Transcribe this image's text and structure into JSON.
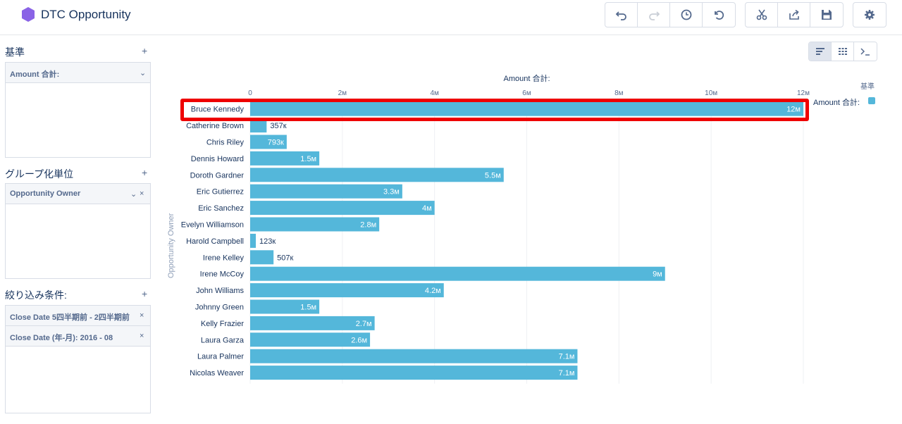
{
  "header": {
    "title": "DTC Opportunity",
    "brand_color": "#8a63e6"
  },
  "left_panel": {
    "measures": {
      "label": "基準",
      "add": "+",
      "pills": [
        {
          "label": "Amount 合計:",
          "icon": "chevron-down-icon"
        }
      ]
    },
    "groupings": {
      "label": "グループ化単位",
      "add": "+",
      "pills": [
        {
          "label": "Opportunity Owner",
          "icons": [
            "chevron-down-icon",
            "close-icon"
          ]
        }
      ]
    },
    "filters": {
      "label": "絞り込み条件:",
      "add": "+",
      "pills": [
        {
          "label": "Close Date 5四半期前 - 2四半期前",
          "icon": "close-icon"
        },
        {
          "label": "Close Date (年-月): 2016 - 08",
          "icon": "close-icon"
        }
      ]
    }
  },
  "legend": {
    "title": "基準",
    "item": "Amount 合計:"
  },
  "chart_data": {
    "type": "bar",
    "orientation": "horizontal",
    "xlabel": "Amount 合計:",
    "ylabel": "Opportunity Owner",
    "xlim": [
      0,
      12000000
    ],
    "x_ticks": [
      "0",
      "2м",
      "4м",
      "6м",
      "8м",
      "10м",
      "12м"
    ],
    "bar_color": "#54b7da",
    "categories": [
      "Bruce Kennedy",
      "Catherine Brown",
      "Chris Riley",
      "Dennis Howard",
      "Doroth Gardner",
      "Eric Gutierrez",
      "Eric Sanchez",
      "Evelyn Williamson",
      "Harold Campbell",
      "Irene Kelley",
      "Irene McCoy",
      "John Williams",
      "Johnny Green",
      "Kelly Frazier",
      "Laura Garza",
      "Laura Palmer",
      "Nicolas Weaver"
    ],
    "values": [
      12000000,
      357000,
      793000,
      1500000,
      5500000,
      3300000,
      4000000,
      2800000,
      123000,
      507000,
      9000000,
      4200000,
      1500000,
      2700000,
      2600000,
      7100000,
      7100000
    ],
    "value_labels": [
      "12м",
      "357к",
      "793к",
      "1.5м",
      "5.5м",
      "3.3м",
      "4м",
      "2.8м",
      "123к",
      "507к",
      "9м",
      "4.2м",
      "1.5м",
      "2.7м",
      "2.6м",
      "7.1м",
      "7.1м"
    ]
  }
}
